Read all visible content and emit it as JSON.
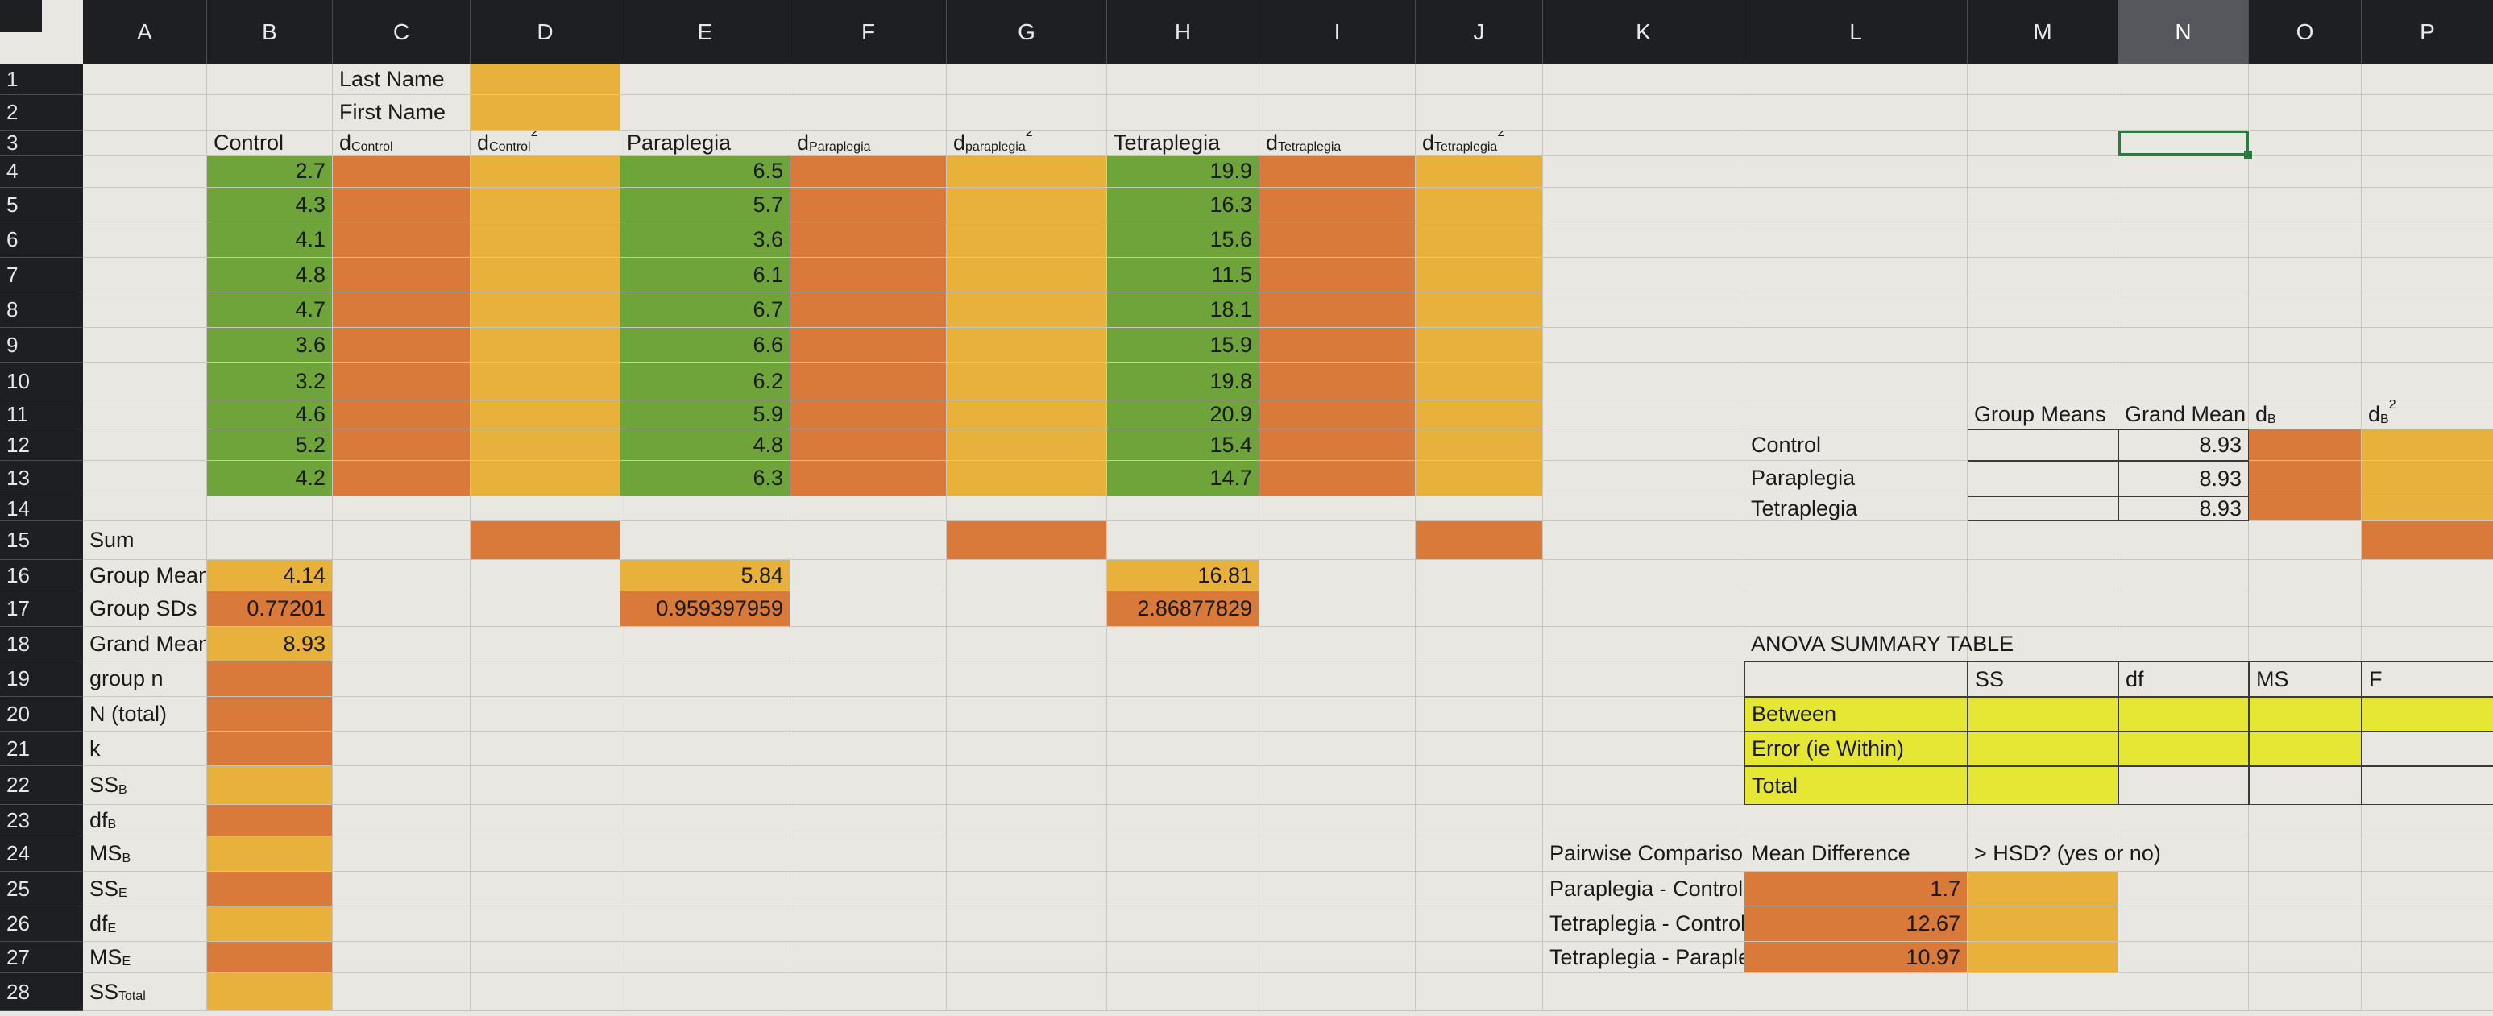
{
  "columns": [
    "A",
    "B",
    "C",
    "D",
    "E",
    "F",
    "G",
    "H",
    "I",
    "J",
    "K",
    "L",
    "M",
    "N",
    "O",
    "P"
  ],
  "selected_column": "N",
  "rows": [
    "1",
    "2",
    "3",
    "4",
    "5",
    "6",
    "7",
    "8",
    "9",
    "10",
    "11",
    "12",
    "13",
    "14",
    "15",
    "16",
    "17",
    "18",
    "19",
    "20",
    "21",
    "22",
    "23",
    "24",
    "25",
    "26",
    "27",
    "28"
  ],
  "header_block": {
    "last_name": "Last Name",
    "first_name": "First Name"
  },
  "headers": {
    "control": "Control",
    "d_control": {
      "main": "d",
      "sub": "Control"
    },
    "d_control_sq": {
      "main": "d",
      "sub": "Control",
      "sup": "2"
    },
    "paraplegia": "Paraplegia",
    "d_para": {
      "main": "d",
      "sub": "Paraplegia"
    },
    "d_para_sq": {
      "main": "d",
      "sub": "paraplegia",
      "sup": "2"
    },
    "tetraplegia": "Tetraplegia",
    "d_tetra": {
      "main": "d",
      "sub": "Tetraplegia"
    },
    "d_tetra_sq": {
      "main": "d",
      "sub": "Tetraplegia",
      "sup": "2"
    }
  },
  "data": {
    "control": [
      "2.7",
      "4.3",
      "4.1",
      "4.8",
      "4.7",
      "3.6",
      "3.2",
      "4.6",
      "5.2",
      "4.2"
    ],
    "paraplegia": [
      "6.5",
      "5.7",
      "3.6",
      "6.1",
      "6.7",
      "6.6",
      "6.2",
      "5.9",
      "4.8",
      "6.3"
    ],
    "tetraplegia": [
      "19.9",
      "16.3",
      "15.6",
      "11.5",
      "18.1",
      "15.9",
      "19.8",
      "20.9",
      "15.4",
      "14.7"
    ]
  },
  "stats_labels": [
    {
      "main": "Sum",
      "sub": ""
    },
    {
      "main": "Group Means",
      "sub": ""
    },
    {
      "main": "Group SDs",
      "sub": ""
    },
    {
      "main": "Grand Mean",
      "sub": ""
    },
    {
      "main": "group n",
      "sub": ""
    },
    {
      "main": "N (total)",
      "sub": ""
    },
    {
      "main": "k",
      "sub": ""
    },
    {
      "main": "SS",
      "sub": "B"
    },
    {
      "main": "df",
      "sub": "B"
    },
    {
      "main": "MS",
      "sub": "B"
    },
    {
      "main": "SS",
      "sub": "E"
    },
    {
      "main": "df",
      "sub": "E"
    },
    {
      "main": "MS",
      "sub": "E"
    },
    {
      "main": "SS",
      "sub": "Total"
    }
  ],
  "stats": {
    "control_mean": "4.14",
    "control_sd": "0.77201",
    "grand_mean": "8.93",
    "para_mean": "5.84",
    "para_sd": "0.959397959",
    "tetra_mean": "16.81",
    "tetra_sd": "2.86877829"
  },
  "group_table": {
    "headers": [
      "Group Means",
      "Grand Mean"
    ],
    "d_b": {
      "main": "d",
      "sub": "B"
    },
    "d_b_sq": {
      "main": "d",
      "sub": "B",
      "sup": "2"
    },
    "rows": [
      {
        "label": "Control",
        "grand": "8.93"
      },
      {
        "label": "Paraplegia",
        "grand": "8.93"
      },
      {
        "label": "Tetraplegia",
        "grand": "8.93"
      }
    ]
  },
  "anova": {
    "title": "ANOVA SUMMARY TABLE",
    "cols": [
      "SS",
      "df",
      "MS",
      "F"
    ],
    "rows": [
      "Between",
      "Error (ie Within)",
      "Total"
    ]
  },
  "pairwise": {
    "headers": [
      "Pairwise Comparison",
      "Mean Difference",
      "> HSD? (yes or no)"
    ],
    "rows": [
      {
        "label": "Paraplegia - Control",
        "diff": "1.7"
      },
      {
        "label": "Tetraplegia - Control",
        "diff": "12.67"
      },
      {
        "label": "Tetraplegia - Paraplegia",
        "diff": "10.97"
      }
    ]
  },
  "colors": {
    "green": "#6fa43b",
    "orange": "#d9793a",
    "gold": "#e8b13b",
    "yellow": "#e6e635",
    "header_bg": "#1e1f22",
    "selection": "#2e7a3e"
  }
}
